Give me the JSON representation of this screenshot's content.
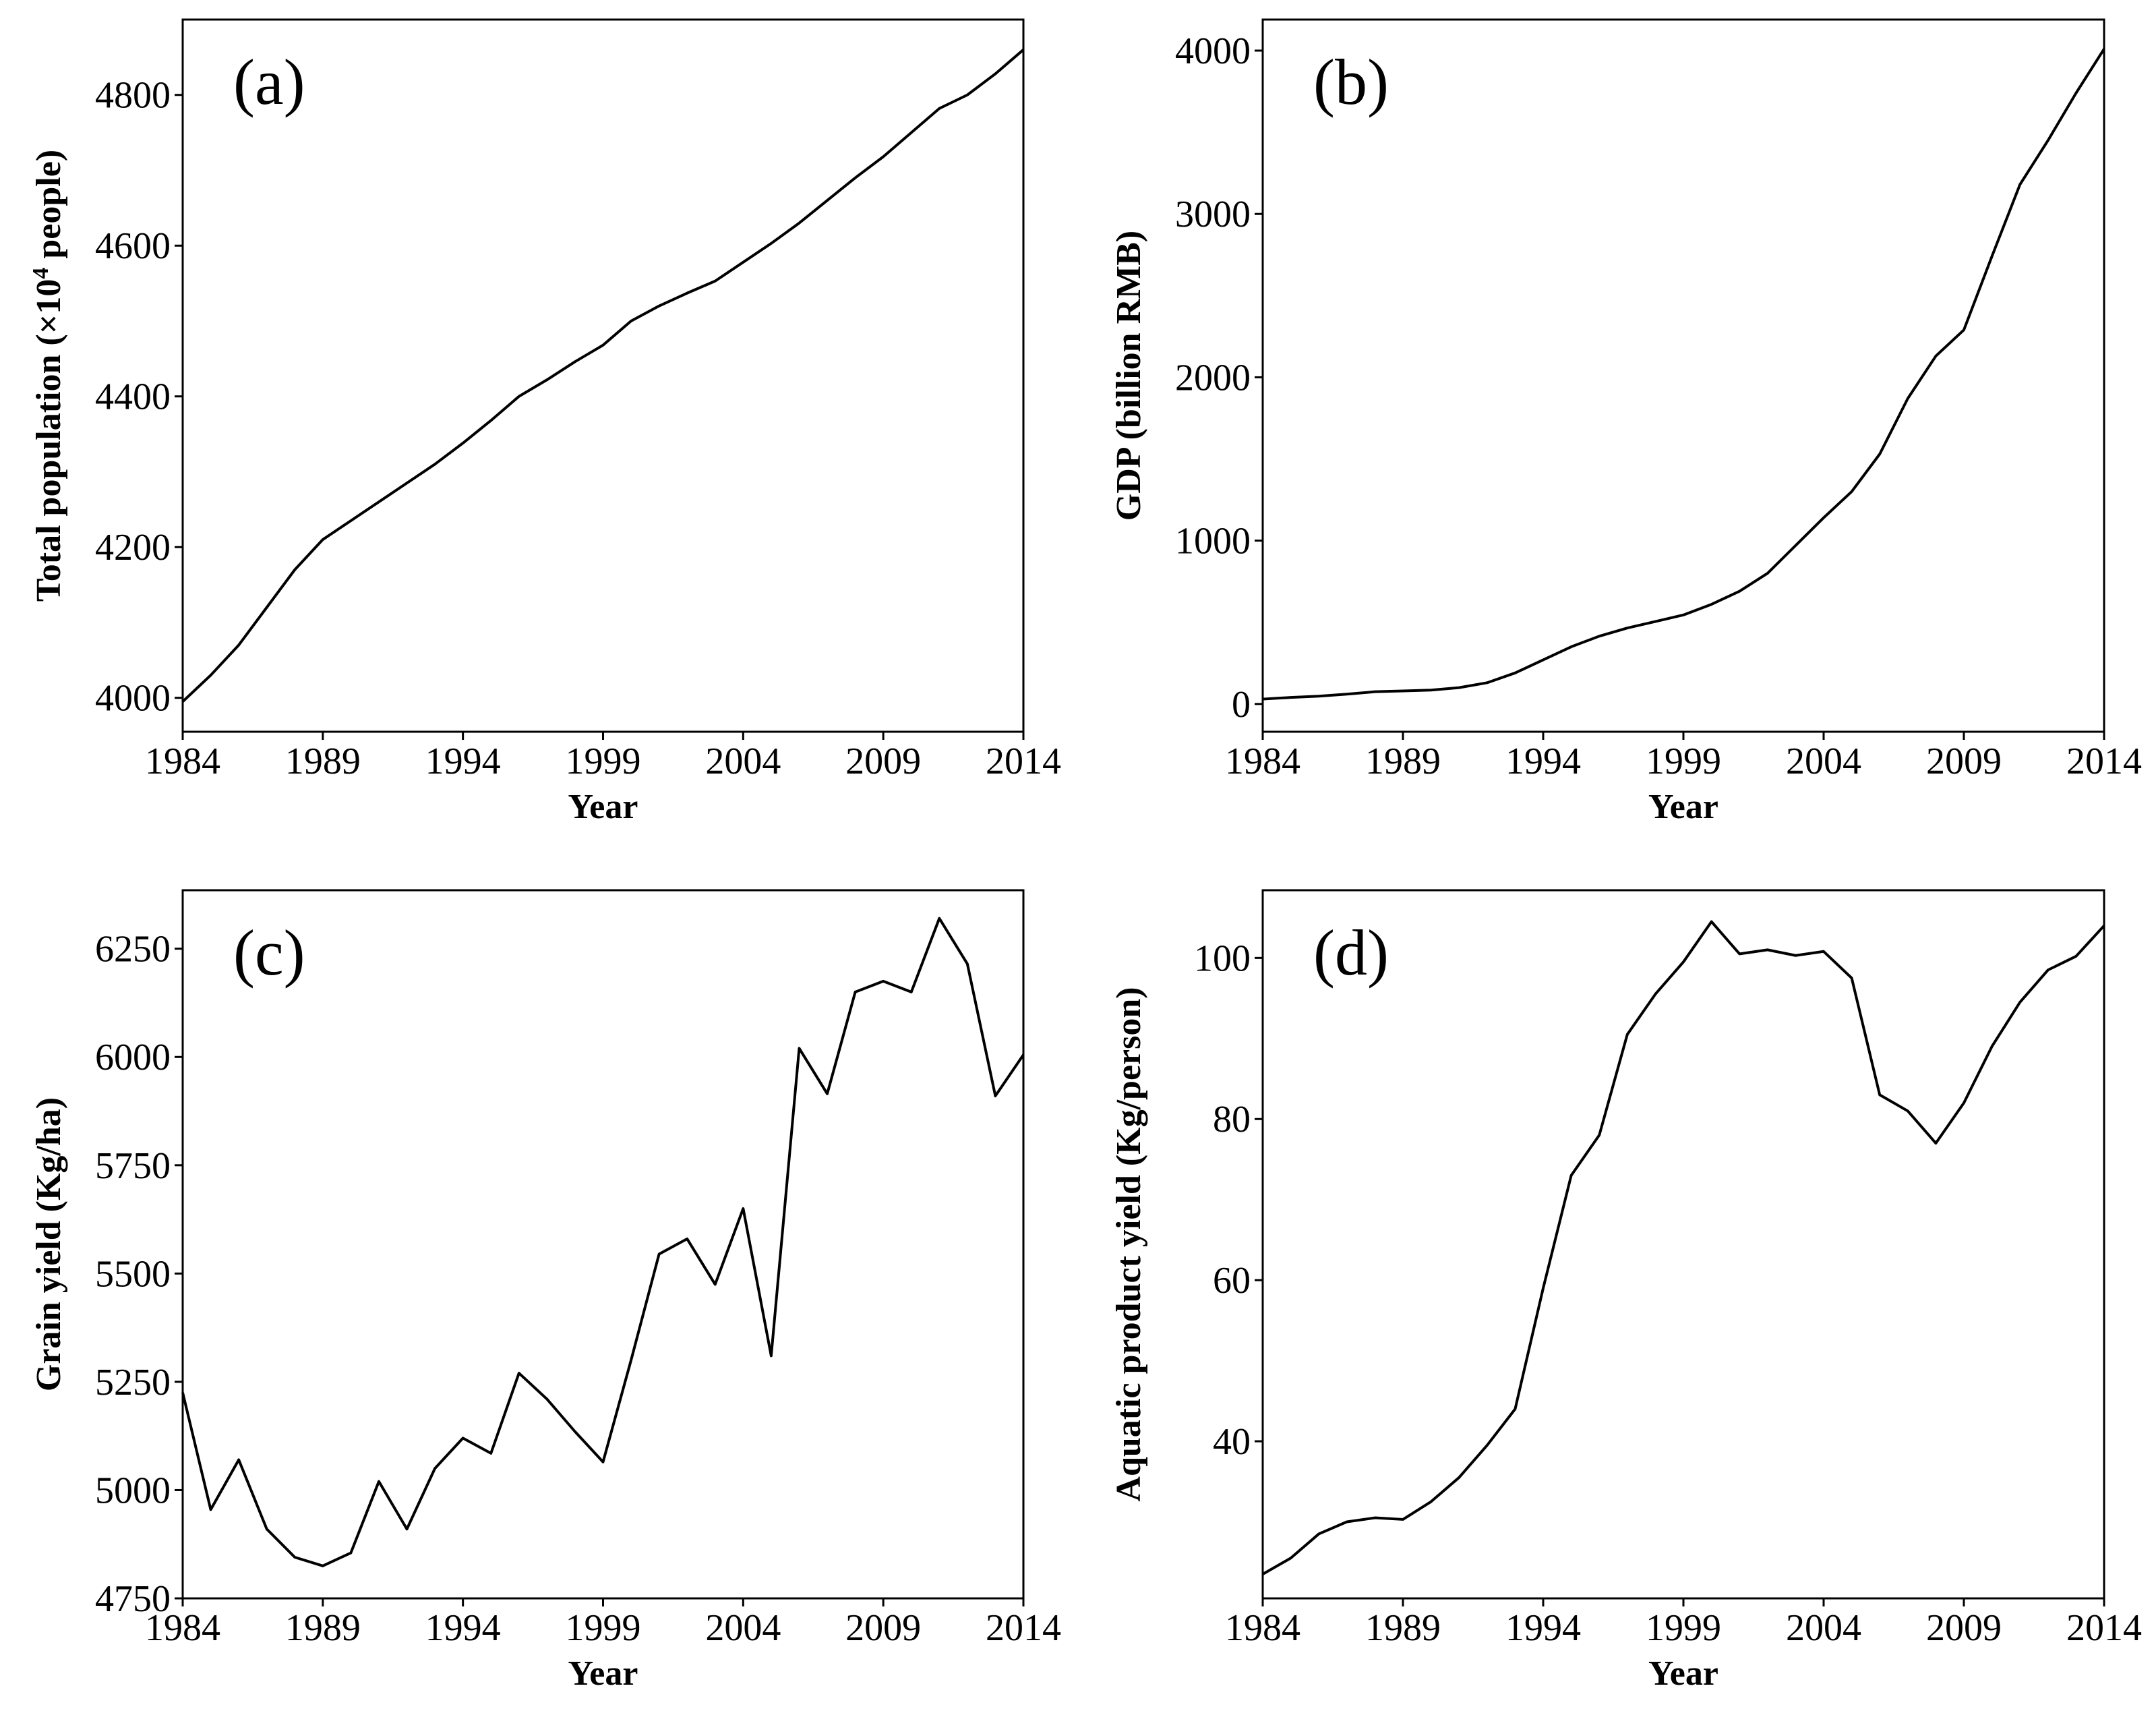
{
  "chart_data": [
    {
      "type": "line",
      "panel_label": "(a)",
      "xlabel": "Year",
      "ylabel_parts": [
        "Total population (×10",
        "4",
        " people)"
      ],
      "x": [
        1984,
        1985,
        1986,
        1987,
        1988,
        1989,
        1990,
        1991,
        1992,
        1993,
        1994,
        1995,
        1996,
        1997,
        1998,
        1999,
        2000,
        2001,
        2002,
        2003,
        2004,
        2005,
        2006,
        2007,
        2008,
        2009,
        2010,
        2011,
        2012,
        2013,
        2014
      ],
      "values": [
        3995,
        4030,
        4070,
        4120,
        4170,
        4210,
        4235,
        4260,
        4285,
        4310,
        4338,
        4368,
        4400,
        4422,
        4446,
        4468,
        4500,
        4520,
        4537,
        4553,
        4578,
        4603,
        4630,
        4660,
        4690,
        4718,
        4750,
        4782,
        4800,
        4828,
        4860
      ],
      "color": "#000000",
      "xlim": [
        1984,
        2014
      ],
      "xticks": [
        1984,
        1989,
        1994,
        1999,
        2004,
        2009,
        2014
      ],
      "ylim": [
        3955,
        4900
      ],
      "yticks": [
        4000,
        4200,
        4400,
        4600,
        4800
      ]
    },
    {
      "type": "line",
      "panel_label": "(b)",
      "xlabel": "Year",
      "ylabel_parts": [
        "GDP (billion RMB)"
      ],
      "x": [
        1984,
        1985,
        1986,
        1987,
        1988,
        1989,
        1990,
        1991,
        1992,
        1993,
        1994,
        1995,
        1996,
        1997,
        1998,
        1999,
        2000,
        2001,
        2002,
        2003,
        2004,
        2005,
        2006,
        2007,
        2008,
        2009,
        2010,
        2011,
        2012,
        2013,
        2014
      ],
      "values": [
        30,
        40,
        48,
        60,
        75,
        80,
        85,
        100,
        130,
        190,
        270,
        350,
        415,
        465,
        505,
        545,
        610,
        690,
        800,
        970,
        1140,
        1300,
        1530,
        1870,
        2130,
        2290,
        2740,
        3180,
        3450,
        3740,
        4010
      ],
      "color": "#000000",
      "xlim": [
        1984,
        2014
      ],
      "xticks": [
        1984,
        1989,
        1994,
        1999,
        2004,
        2009,
        2014
      ],
      "ylim": [
        -170,
        4190
      ],
      "yticks": [
        0,
        1000,
        2000,
        3000,
        4000
      ]
    },
    {
      "type": "line",
      "panel_label": "(c)",
      "xlabel": "Year",
      "ylabel_parts": [
        "Grain yield (Kg/ha)"
      ],
      "x": [
        1984,
        1985,
        1986,
        1987,
        1988,
        1989,
        1990,
        1991,
        1992,
        1993,
        1994,
        1995,
        1996,
        1997,
        1998,
        1999,
        2000,
        2001,
        2002,
        2003,
        2004,
        2005,
        2006,
        2007,
        2008,
        2009,
        2010,
        2011,
        2012,
        2013,
        2014
      ],
      "values": [
        5225,
        4955,
        5070,
        4910,
        4845,
        4825,
        4855,
        5020,
        4910,
        5050,
        5120,
        5085,
        5270,
        5210,
        5135,
        5065,
        5300,
        5545,
        5580,
        5475,
        5650,
        5310,
        6020,
        5915,
        6150,
        6175,
        6150,
        6320,
        6215,
        5910,
        6005
      ],
      "color": "#000000",
      "xlim": [
        1984,
        2014
      ],
      "xticks": [
        1984,
        1989,
        1994,
        1999,
        2004,
        2009,
        2014
      ],
      "ylim": [
        4750,
        6385
      ],
      "yticks": [
        4750,
        5000,
        5250,
        5500,
        5750,
        6000,
        6250
      ]
    },
    {
      "type": "line",
      "panel_label": "(d)",
      "xlabel": "Year",
      "ylabel_parts": [
        "Aquatic product yield (Kg/person)"
      ],
      "x": [
        1984,
        1985,
        1986,
        1987,
        1988,
        1989,
        1990,
        1991,
        1992,
        1993,
        1994,
        1995,
        1996,
        1997,
        1998,
        1999,
        2000,
        2001,
        2002,
        2003,
        2004,
        2005,
        2006,
        2007,
        2008,
        2009,
        2010,
        2011,
        2012,
        2013,
        2014
      ],
      "values": [
        23.5,
        25.5,
        28.5,
        30,
        30.5,
        30.3,
        32.5,
        35.5,
        39.5,
        44,
        59,
        73,
        78,
        90.5,
        95.5,
        99.5,
        104.5,
        100.5,
        101,
        100.3,
        100.8,
        97.5,
        83,
        81,
        77,
        82,
        89,
        94.5,
        98.5,
        100.2,
        104
      ],
      "color": "#000000",
      "xlim": [
        1984,
        2014
      ],
      "xticks": [
        1984,
        1989,
        1994,
        1999,
        2004,
        2009,
        2014
      ],
      "ylim": [
        20.5,
        108.4
      ],
      "yticks": [
        40,
        60,
        80,
        100
      ]
    }
  ]
}
